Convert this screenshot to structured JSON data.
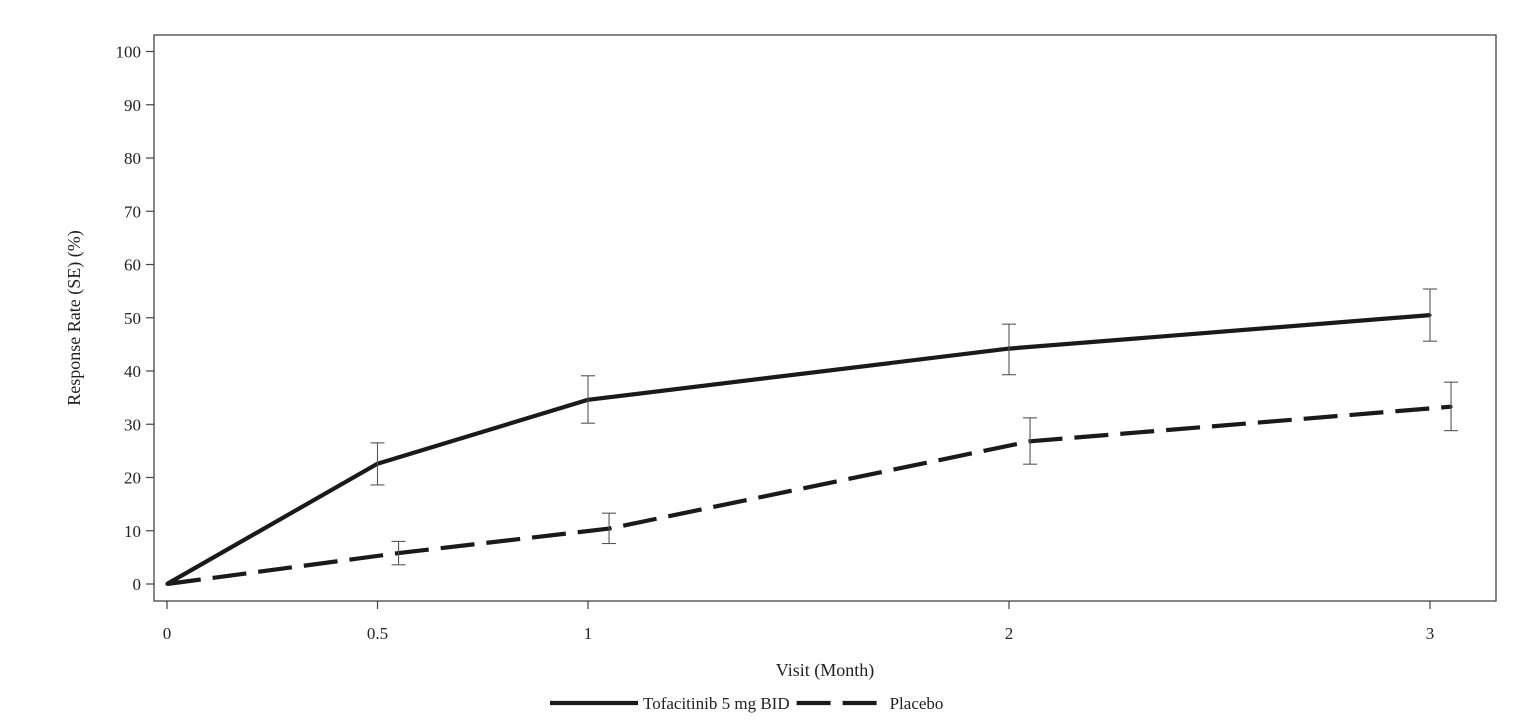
{
  "chart_data": {
    "type": "line",
    "title": "",
    "xlabel": "Visit (Month)",
    "ylabel": "Response Rate (SE) (%)",
    "x": [
      0,
      0.5,
      1,
      2,
      3
    ],
    "x_tick_labels": [
      "0",
      "0.5",
      "1",
      "2",
      "3"
    ],
    "y_ticks": [
      0,
      10,
      20,
      30,
      40,
      50,
      60,
      70,
      80,
      90,
      100
    ],
    "ylim": [
      -3,
      104
    ],
    "grid": false,
    "legend_position": "bottom",
    "series": [
      {
        "name": "Tofacitinib 5 mg BID",
        "style": "solid",
        "color": "#1a1a1a",
        "points": [
          {
            "x": 0,
            "y": 0
          },
          {
            "x": 0.5,
            "y": 22.6,
            "se_low": 18.6,
            "se_high": 26.5
          },
          {
            "x": 1,
            "y": 34.6,
            "se_low": 30.2,
            "se_high": 39.1
          },
          {
            "x": 2,
            "y": 44.2,
            "se_low": 39.3,
            "se_high": 48.8
          },
          {
            "x": 3,
            "y": 50.5,
            "se_low": 45.6,
            "se_high": 55.4
          }
        ]
      },
      {
        "name": "Placebo",
        "style": "dashed",
        "color": "#1a1a1a",
        "points": [
          {
            "x": 0,
            "y": 0
          },
          {
            "x": 0.55,
            "y": 5.8,
            "se_low": 3.6,
            "se_high": 8.0
          },
          {
            "x": 1.05,
            "y": 10.4,
            "se_low": 7.6,
            "se_high": 13.3
          },
          {
            "x": 2.05,
            "y": 26.8,
            "se_low": 22.5,
            "se_high": 31.2
          },
          {
            "x": 3.05,
            "y": 33.3,
            "se_low": 28.8,
            "se_high": 37.9
          }
        ]
      }
    ]
  }
}
